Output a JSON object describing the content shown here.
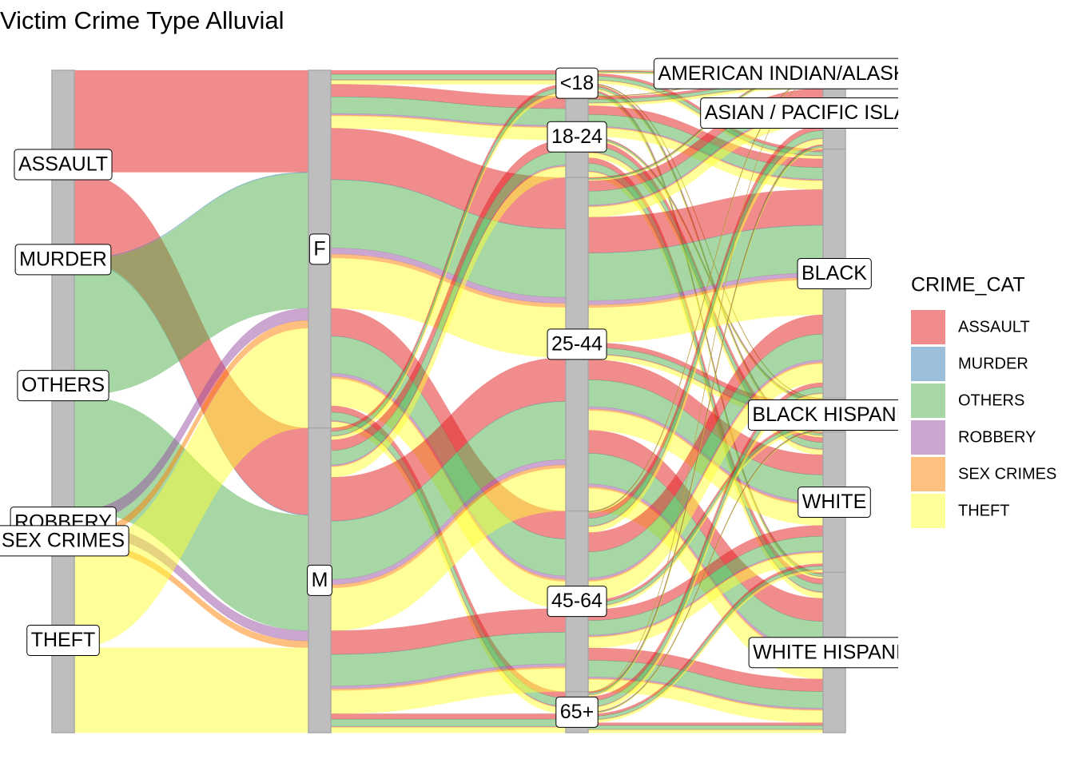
{
  "chart_data": {
    "type": "alluvial",
    "title": "Victim Crime Type Alluvial",
    "legend_title": "CRIME_CAT",
    "axes": [
      {
        "strata": [
          {
            "label": "ASSAULT",
            "value": 28.5,
            "color": "#E41A1C"
          },
          {
            "label": "MURDER",
            "value": 0.2,
            "color": "#377EB8"
          },
          {
            "label": "OTHERS",
            "value": 37.9,
            "color": "#4DAF4A"
          },
          {
            "label": "ROBBERY",
            "value": 3.4,
            "color": "#984EA3"
          },
          {
            "label": "SEX CRIMES",
            "value": 2.2,
            "color": "#FF7F00"
          },
          {
            "label": "THEFT",
            "value": 27.9,
            "color": "#FFFF33"
          }
        ]
      },
      {
        "strata": [
          {
            "label": "F",
            "value": 54
          },
          {
            "label": "M",
            "value": 46
          }
        ]
      },
      {
        "strata": [
          {
            "label": "<18",
            "value": 3.9
          },
          {
            "label": "18-24",
            "value": 12.3
          },
          {
            "label": "25-44",
            "value": 50.4
          },
          {
            "label": "45-64",
            "value": 27.3
          },
          {
            "label": "65+",
            "value": 6.2
          }
        ]
      },
      {
        "strata": [
          {
            "label": "AMERICAN INDIAN/ALASKAN NATIVE",
            "value": 1
          },
          {
            "label": "ASIAN / PACIFIC ISLANDER",
            "value": 10.9
          },
          {
            "label": "BLACK",
            "value": 37.6
          },
          {
            "label": "BLACK HISPANIC",
            "value": 5.1
          },
          {
            "label": "WHITE",
            "value": 21.2
          },
          {
            "label": "WHITE HISPANIC",
            "value": 24.2
          }
        ]
      }
    ]
  }
}
